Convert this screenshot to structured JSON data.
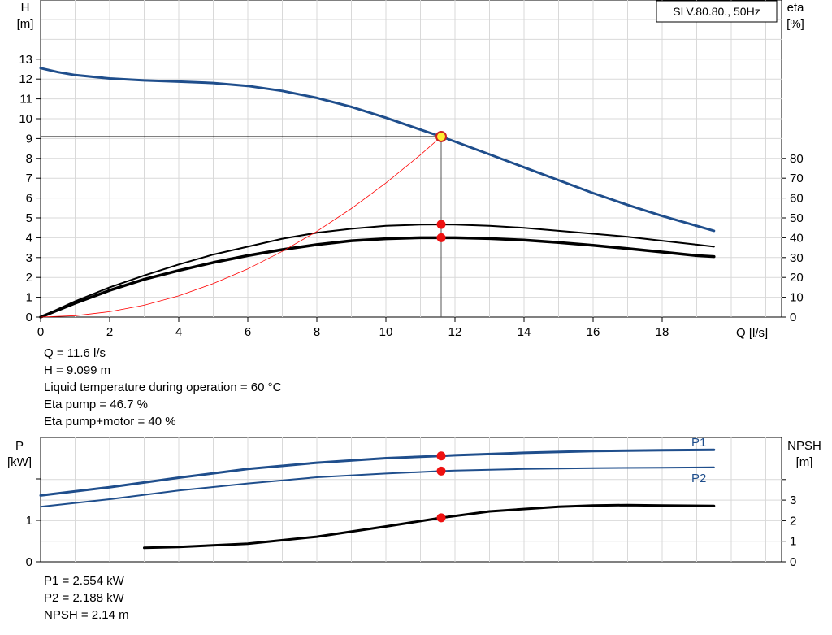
{
  "chart_data": [
    {
      "type": "line",
      "title": "SLV.80.80., 50Hz",
      "xlabel": "Q [l/s]",
      "ylabel": "H",
      "ylabel_unit": "[m]",
      "y2label": "eta",
      "y2label_unit": "[%]",
      "xlim": [
        0,
        20
      ],
      "ylim": [
        0,
        16
      ],
      "y2lim": [
        0,
        160
      ],
      "xticks": [
        "0",
        "2",
        "4",
        "6",
        "8",
        "10",
        "12",
        "14",
        "16",
        "18"
      ],
      "yticks": [
        "0",
        "1",
        "2",
        "3",
        "4",
        "5",
        "6",
        "7",
        "8",
        "9",
        "10",
        "11",
        "12",
        "13"
      ],
      "y2ticks": [
        "0",
        "10",
        "20",
        "30",
        "40",
        "50",
        "60",
        "70",
        "80"
      ],
      "grid": true,
      "series": [
        {
          "id": "head",
          "axis": "left",
          "color": "#1f4e8c",
          "x": [
            0,
            0.5,
            1,
            2,
            3,
            4,
            5,
            6,
            7,
            8,
            9,
            10,
            11,
            11.6,
            12,
            13,
            14,
            15,
            16,
            17,
            18,
            19,
            19.5
          ],
          "y": [
            12.55,
            12.35,
            12.2,
            12.03,
            11.93,
            11.87,
            11.8,
            11.65,
            11.4,
            11.05,
            10.6,
            10.05,
            9.45,
            9.1,
            8.85,
            8.2,
            7.55,
            6.9,
            6.25,
            5.65,
            5.1,
            4.6,
            4.35
          ]
        },
        {
          "id": "eta-pump",
          "axis": "right",
          "color": "#000000",
          "x": [
            0,
            1,
            2,
            3,
            4,
            5,
            6,
            7,
            8,
            9,
            10,
            11,
            11.6,
            12,
            13,
            14,
            15,
            16,
            17,
            18,
            19,
            19.5
          ],
          "y": [
            0,
            8,
            15,
            21,
            26.5,
            31.5,
            35.5,
            39.5,
            42.5,
            44.5,
            46,
            46.6,
            46.7,
            46.6,
            46,
            45,
            43.5,
            42,
            40.5,
            38.5,
            36.5,
            35.5
          ]
        },
        {
          "id": "eta-pump-motor",
          "axis": "right",
          "color": "#000000",
          "x": [
            0,
            1,
            2,
            3,
            4,
            5,
            6,
            7,
            8,
            9,
            10,
            11,
            11.6,
            12,
            13,
            14,
            15,
            16,
            17,
            18,
            19,
            19.5
          ],
          "y": [
            0,
            7,
            13.5,
            19,
            23.5,
            27.5,
            31,
            34,
            36.5,
            38.5,
            39.5,
            40,
            40,
            40,
            39.6,
            38.8,
            37.6,
            36.2,
            34.5,
            32.8,
            31,
            30.5
          ]
        },
        {
          "id": "system-curve",
          "axis": "left",
          "color": "#ff0000",
          "x": [
            0,
            1,
            2,
            3,
            4,
            5,
            6,
            7,
            8,
            9,
            10,
            11,
            11.6
          ],
          "y": [
            0,
            0.07,
            0.27,
            0.6,
            1.07,
            1.69,
            2.43,
            3.31,
            4.32,
            5.47,
            6.76,
            8.18,
            9.1
          ]
        }
      ],
      "operating_point": {
        "x": 11.6,
        "H": 9.099,
        "eta_pump": 46.7,
        "eta_pump_motor": 40
      }
    },
    {
      "type": "line",
      "xlabel": "",
      "ylabel": "P",
      "ylabel_unit": "[kW]",
      "y2label": "NPSH",
      "y2label_unit": "[m]",
      "xlim": [
        0,
        20
      ],
      "ylim": [
        0,
        3
      ],
      "y2lim": [
        0,
        6
      ],
      "yticks": [
        "0",
        "1"
      ],
      "y2ticks": [
        "0",
        "1",
        "2",
        "3"
      ],
      "grid": true,
      "series": [
        {
          "id": "p1",
          "name": "P1",
          "axis": "left",
          "color": "#1f4e8c",
          "x": [
            0,
            2,
            4,
            6,
            8,
            10,
            11.6,
            12,
            14,
            16,
            18,
            19.5
          ],
          "y": [
            1.6,
            1.8,
            2.03,
            2.24,
            2.39,
            2.5,
            2.554,
            2.57,
            2.63,
            2.67,
            2.69,
            2.7
          ]
        },
        {
          "id": "p2",
          "name": "P2",
          "axis": "left",
          "color": "#1f4e8c",
          "x": [
            0,
            2,
            4,
            6,
            8,
            10,
            11.6,
            12,
            14,
            16,
            18,
            19.5
          ],
          "y": [
            1.33,
            1.51,
            1.72,
            1.89,
            2.04,
            2.13,
            2.188,
            2.2,
            2.24,
            2.26,
            2.27,
            2.28
          ]
        },
        {
          "id": "npsh",
          "axis": "right",
          "color": "#000000",
          "x": [
            3,
            4,
            6,
            8,
            10,
            11.6,
            13,
            15,
            16,
            17,
            18,
            19.5
          ],
          "y": [
            0.68,
            0.72,
            0.88,
            1.22,
            1.72,
            2.14,
            2.45,
            2.68,
            2.74,
            2.76,
            2.74,
            2.72
          ]
        }
      ],
      "operating_point": {
        "x": 11.6,
        "P1": 2.554,
        "P2": 2.188,
        "NPSH": 2.14
      }
    }
  ],
  "info_top": [
    "Q = 11.6 l/s",
    "H = 9.099 m",
    "Liquid temperature during operation = 60 °C",
    "Eta pump = 46.7 %",
    "Eta pump+motor = 40 %"
  ],
  "info_bottom": [
    "P1 = 2.554 kW",
    "P2 = 2.188 kW",
    "NPSH = 2.14 m"
  ]
}
